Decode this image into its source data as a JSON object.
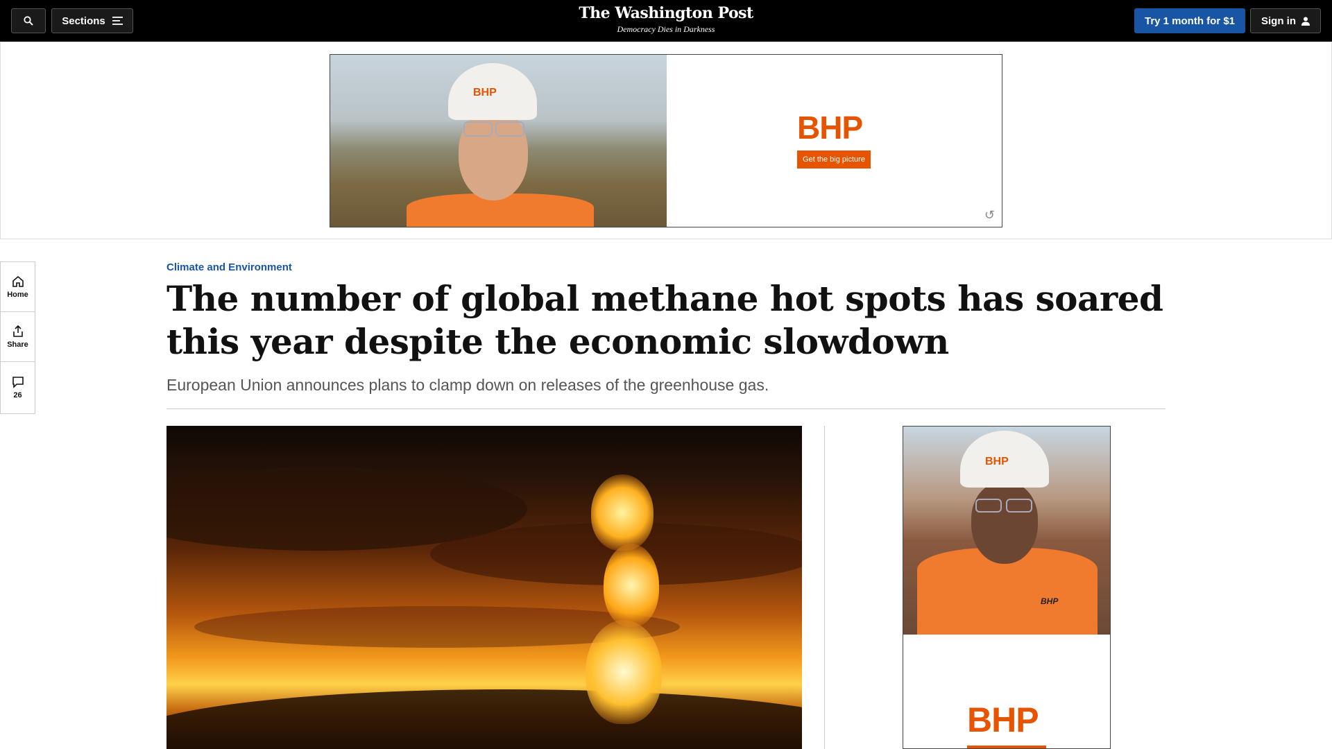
{
  "header": {
    "sections_label": "Sections",
    "logo_title": "The Washington Post",
    "logo_tagline": "Democracy Dies in Darkness",
    "subscribe_label": "Try 1 month for $1",
    "signin_label": "Sign in"
  },
  "top_ad": {
    "helmet_text": "BHP",
    "brand": "BHP",
    "tagline": "Get the big picture"
  },
  "rail": {
    "home_label": "Home",
    "share_label": "Share",
    "comments_count": "26"
  },
  "article": {
    "kicker": "Climate and Environment",
    "headline": "The number of global methane hot spots has soared this year despite the economic slowdown",
    "dek": "European Union announces plans to clamp down on releases of the greenhouse gas."
  },
  "side_ad": {
    "helmet_text": "BHP",
    "shirt_text": "BHP",
    "brand": "BHP"
  },
  "colors": {
    "accent_blue": "#1955a5",
    "brand_orange": "#e65400"
  }
}
